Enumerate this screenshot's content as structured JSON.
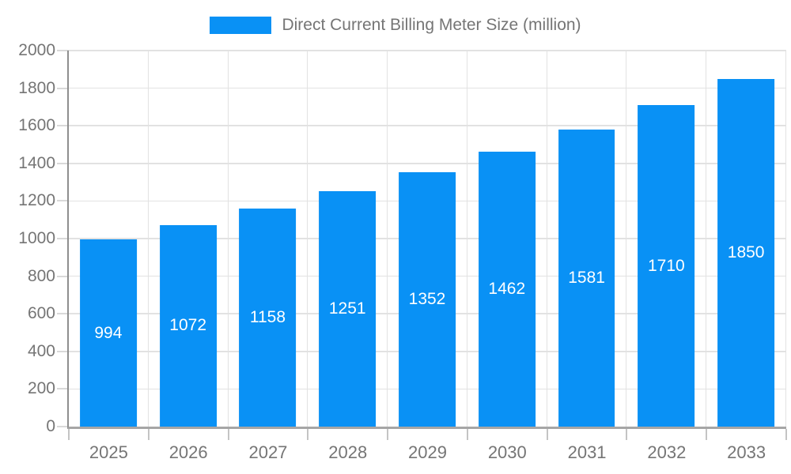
{
  "chart_data": {
    "type": "bar",
    "title": "",
    "legend": "Direct Current Billing Meter Size (million)",
    "categories": [
      "2025",
      "2026",
      "2027",
      "2028",
      "2029",
      "2030",
      "2031",
      "2032",
      "2033"
    ],
    "values": [
      994,
      1072,
      1158,
      1251,
      1352,
      1462,
      1581,
      1710,
      1850
    ],
    "xlabel": "",
    "ylabel": "",
    "ylim": [
      0,
      2000
    ],
    "ytick_step": 200,
    "yticks": [
      0,
      200,
      400,
      600,
      800,
      1000,
      1200,
      1400,
      1600,
      1800,
      2000
    ],
    "grid": true,
    "legend_position": "top-center",
    "value_labels": "inside-center",
    "colors": {
      "bar": "#0991f5",
      "value_label": "#ffffff",
      "axis_text": "#757575",
      "legend_text": "#757575",
      "gridline": "#e2e2e2",
      "y_axis_line": "#8e8e8e",
      "x_axis_line": "#a6a6a6",
      "background": "#ffffff"
    }
  }
}
